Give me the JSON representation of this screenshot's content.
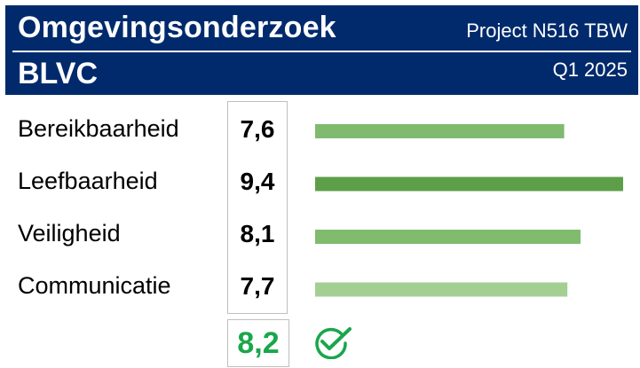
{
  "header": {
    "title": "Omgevingsonderzoek",
    "subtitle": "BLVC",
    "project": "Project N516 TBW",
    "period": "Q1 2025",
    "background_color": "#002a6c"
  },
  "chart_data": {
    "type": "bar",
    "orientation": "horizontal",
    "categories": [
      "Bereikbaarheid",
      "Leefbaarheid",
      "Veiligheid",
      "Communicatie"
    ],
    "values": [
      7.6,
      9.4,
      8.1,
      7.7
    ],
    "value_labels": [
      "7,6",
      "9,4",
      "8,1",
      "7,7"
    ],
    "bar_colors": [
      "#7fba6e",
      "#5d9f48",
      "#80bb6e",
      "#a3cf93"
    ],
    "xlim": [
      0,
      9.4
    ],
    "grid": false,
    "total": {
      "value": 8.2,
      "label": "8,2",
      "color": "#1aa64b"
    }
  },
  "icons": {
    "status": "check-circle-icon",
    "status_color": "#1aa64b"
  }
}
